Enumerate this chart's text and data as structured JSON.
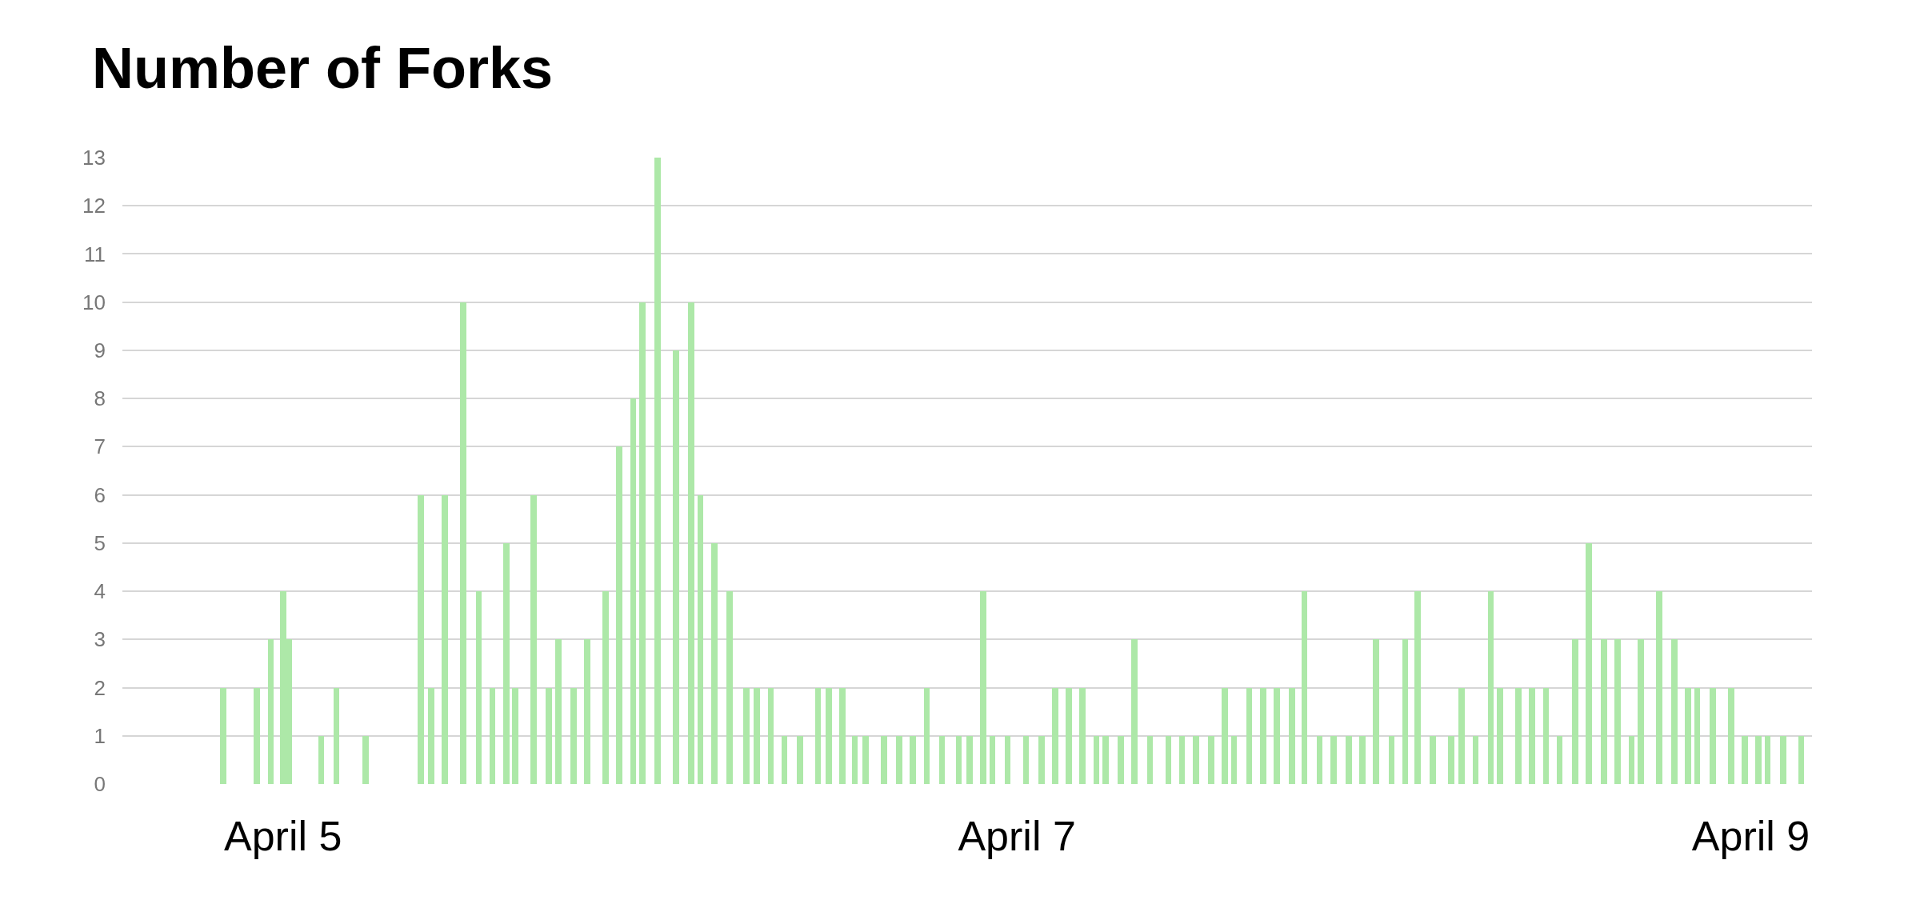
{
  "chart_data": {
    "type": "bar",
    "title": "Number of Forks",
    "x": [
      "--04-04T20:06",
      "--04-04T22:18",
      "--04-04T23:12",
      "--04-05T00:00",
      "--04-05T00:24",
      "--04-05T02:30",
      "--04-05T03:30",
      "--04-05T05:24",
      "--04-05T09:00",
      "--04-05T09:42",
      "--04-05T10:36",
      "--04-05T11:48",
      "--04-05T12:48",
      "--04-05T13:42",
      "--04-05T14:36",
      "--04-05T15:12",
      "--04-05T16:24",
      "--04-05T17:24",
      "--04-05T18:00",
      "--04-05T19:00",
      "--04-05T19:54",
      "--04-05T21:06",
      "--04-05T22:00",
      "--04-05T22:54",
      "--04-05T23:30",
      "--04-06T00:30",
      "--04-06T01:42",
      "--04-06T02:42",
      "--04-06T03:18",
      "--04-06T04:12",
      "--04-06T05:12",
      "--04-06T06:18",
      "--04-06T07:00",
      "--04-06T07:54",
      "--04-06T08:48",
      "--04-06T09:48",
      "--04-06T11:00",
      "--04-06T11:42",
      "--04-06T12:36",
      "--04-06T13:24",
      "--04-06T14:06",
      "--04-06T15:18",
      "--04-06T16:18",
      "--04-06T17:12",
      "--04-06T18:06",
      "--04-06T19:06",
      "--04-06T20:12",
      "--04-06T20:54",
      "--04-06T21:48",
      "--04-06T22:24",
      "--04-06T23:24",
      "--04-07T00:36",
      "--04-07T01:36",
      "--04-07T02:30",
      "--04-07T03:24",
      "--04-07T04:18",
      "--04-07T05:12",
      "--04-07T05:48",
      "--04-07T06:48",
      "--04-07T07:42",
      "--04-07T08:42",
      "--04-07T09:54",
      "--04-07T10:48",
      "--04-07T11:42",
      "--04-07T12:42",
      "--04-07T13:36",
      "--04-07T14:12",
      "--04-07T15:12",
      "--04-07T16:06",
      "--04-07T17:00",
      "--04-07T18:00",
      "--04-07T18:48",
      "--04-07T19:48",
      "--04-07T20:42",
      "--04-07T21:42",
      "--04-07T22:36",
      "--04-07T23:30",
      "--04-08T00:30",
      "--04-08T01:24",
      "--04-08T02:12",
      "--04-08T03:12",
      "--04-08T04:24",
      "--04-08T05:06",
      "--04-08T06:00",
      "--04-08T07:00",
      "--04-08T07:36",
      "--04-08T08:48",
      "--04-08T09:42",
      "--04-08T10:36",
      "--04-08T11:30",
      "--04-08T12:30",
      "--04-08T13:24",
      "--04-08T14:24",
      "--04-08T15:18",
      "--04-08T16:12",
      "--04-08T16:48",
      "--04-08T18:00",
      "--04-08T19:00",
      "--04-08T19:54",
      "--04-08T20:30",
      "--04-08T21:30",
      "--04-08T22:42",
      "--04-08T23:36",
      "--04-09T00:30",
      "--04-09T01:06",
      "--04-09T02:06",
      "--04-09T03:18"
    ],
    "values": [
      2,
      2,
      3,
      4,
      3,
      1,
      2,
      1,
      6,
      2,
      6,
      10,
      4,
      2,
      5,
      2,
      6,
      2,
      3,
      2,
      3,
      4,
      7,
      8,
      10,
      13,
      9,
      10,
      6,
      5,
      4,
      2,
      2,
      2,
      1,
      1,
      2,
      2,
      2,
      1,
      1,
      1,
      1,
      1,
      2,
      1,
      1,
      1,
      4,
      1,
      1,
      1,
      1,
      2,
      2,
      2,
      1,
      1,
      1,
      3,
      1,
      1,
      1,
      1,
      1,
      2,
      1,
      2,
      2,
      2,
      2,
      4,
      1,
      1,
      1,
      1,
      3,
      1,
      3,
      4,
      1,
      1,
      2,
      1,
      4,
      2,
      2,
      2,
      2,
      1,
      3,
      5,
      3,
      3,
      1,
      3,
      4,
      3,
      2,
      2,
      2,
      2,
      1,
      1,
      1,
      1,
      1
    ],
    "color": "#ade8a8",
    "xlim": [
      "--04-04T13:30",
      "--04-09T04:00"
    ],
    "xticks": [
      {
        "value": "--04-05",
        "label": "April 5"
      },
      {
        "value": "--04-07",
        "label": "April 7"
      },
      {
        "value": "--04-09",
        "label": "April 9"
      }
    ],
    "ylim": [
      0,
      13
    ],
    "yticks": [
      0,
      1,
      2,
      3,
      4,
      5,
      6,
      7,
      8,
      9,
      10,
      11,
      12,
      13
    ],
    "grid": "y"
  }
}
